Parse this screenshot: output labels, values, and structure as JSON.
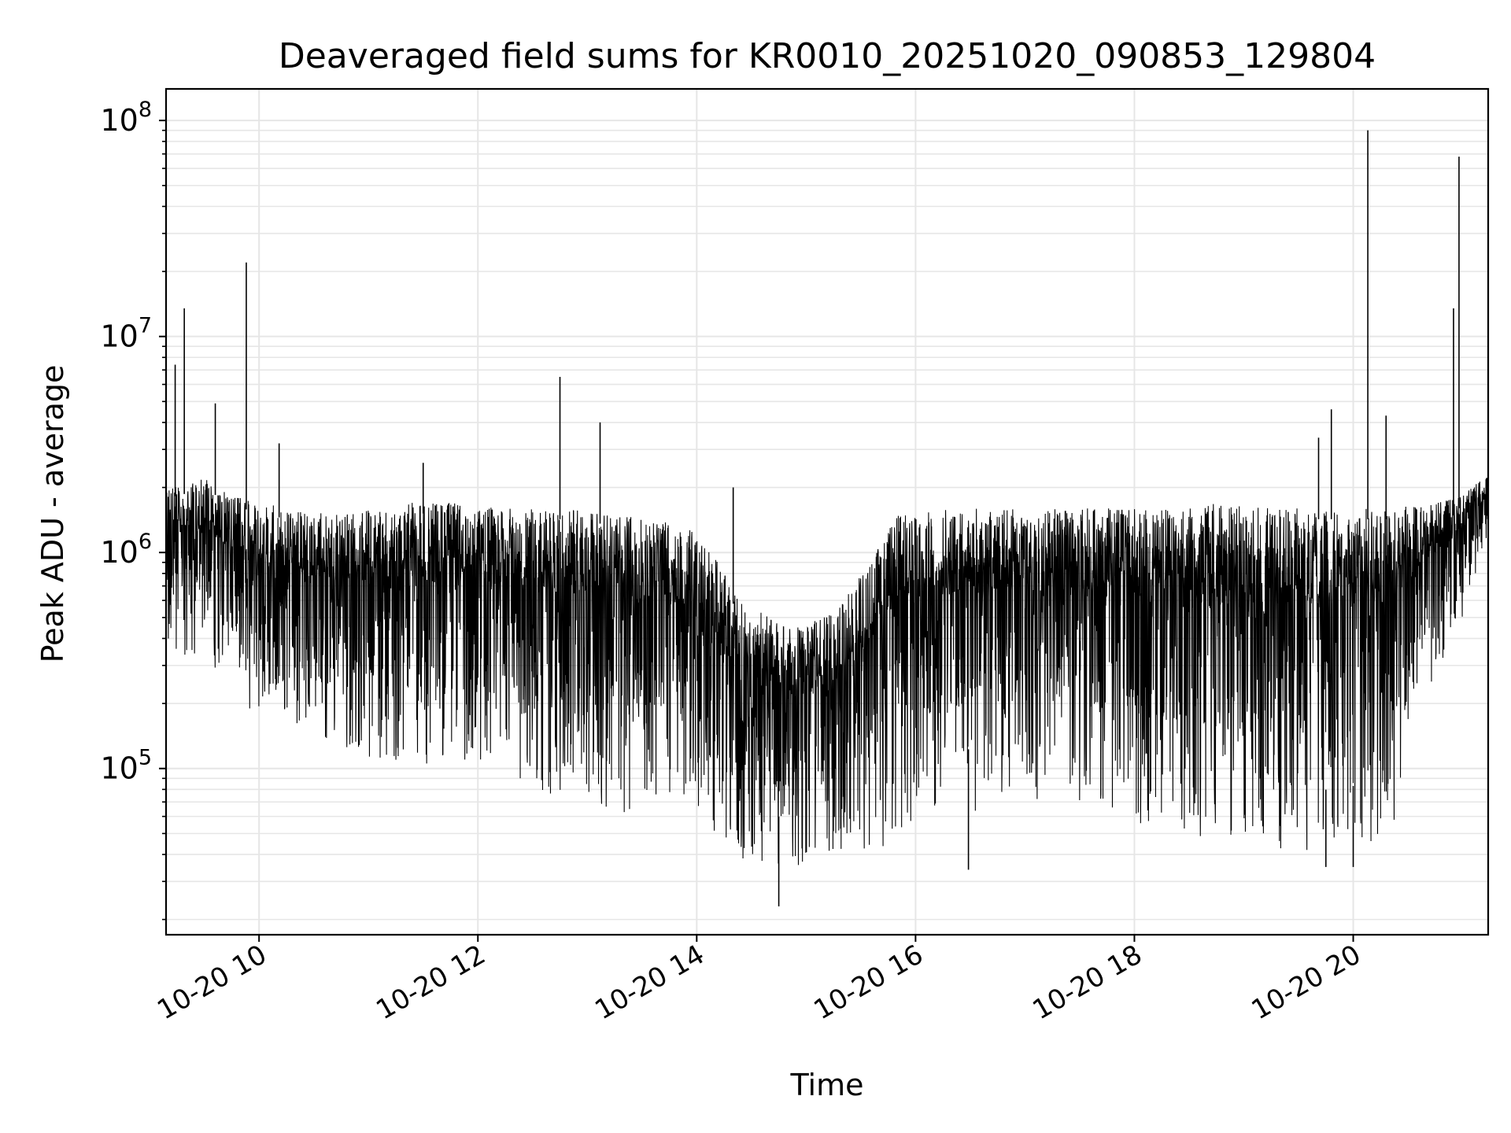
{
  "chart_data": {
    "type": "line",
    "title": "Deaveraged field sums for KR0010_20251020_090853_129804",
    "xlabel": "Time",
    "ylabel": "Peak ADU - average",
    "y_scale": "log",
    "ylim": [
      17000,
      140000000
    ],
    "xlim": [
      "2025-10-20 09:09",
      "2025-10-20 21:14"
    ],
    "x_ticks": [
      {
        "value": "2025-10-20 10:00",
        "label": "10-20 10"
      },
      {
        "value": "2025-10-20 12:00",
        "label": "10-20 12"
      },
      {
        "value": "2025-10-20 14:00",
        "label": "10-20 14"
      },
      {
        "value": "2025-10-20 16:00",
        "label": "10-20 16"
      },
      {
        "value": "2025-10-20 18:00",
        "label": "10-20 18"
      },
      {
        "value": "2025-10-20 20:00",
        "label": "10-20 20"
      }
    ],
    "y_ticks": [
      {
        "value": 100000,
        "base": "10",
        "exp": "5"
      },
      {
        "value": 1000000,
        "base": "10",
        "exp": "6"
      },
      {
        "value": 10000000,
        "base": "10",
        "exp": "7"
      },
      {
        "value": 100000000,
        "base": "10",
        "exp": "8"
      }
    ],
    "grid": true,
    "line_color": "#000000",
    "series": [
      {
        "envelope": [
          {
            "t": "2025-10-20 09:09",
            "low": 350000,
            "high": 2000000
          },
          {
            "t": "2025-10-20 09:30",
            "low": 300000,
            "high": 2200000
          },
          {
            "t": "2025-10-20 09:50",
            "low": 200000,
            "high": 1800000
          },
          {
            "t": "2025-10-20 10:15",
            "low": 150000,
            "high": 1600000
          },
          {
            "t": "2025-10-20 10:45",
            "low": 110000,
            "high": 1500000
          },
          {
            "t": "2025-10-20 11:15",
            "low": 100000,
            "high": 1700000
          },
          {
            "t": "2025-10-20 11:45",
            "low": 100000,
            "high": 1700000
          },
          {
            "t": "2025-10-20 12:15",
            "low": 90000,
            "high": 1600000
          },
          {
            "t": "2025-10-20 12:45",
            "low": 65000,
            "high": 1600000
          },
          {
            "t": "2025-10-20 13:15",
            "low": 60000,
            "high": 1500000
          },
          {
            "t": "2025-10-20 13:45",
            "low": 70000,
            "high": 1400000
          },
          {
            "t": "2025-10-20 14:05",
            "low": 55000,
            "high": 1200000
          },
          {
            "t": "2025-10-20 14:20",
            "low": 40000,
            "high": 650000
          },
          {
            "t": "2025-10-20 14:40",
            "low": 30000,
            "high": 500000
          },
          {
            "t": "2025-10-20 15:00",
            "low": 30000,
            "high": 450000
          },
          {
            "t": "2025-10-20 15:20",
            "low": 35000,
            "high": 600000
          },
          {
            "t": "2025-10-20 15:35",
            "low": 40000,
            "high": 900000
          },
          {
            "t": "2025-10-20 15:50",
            "low": 45000,
            "high": 1500000
          },
          {
            "t": "2025-10-20 16:20",
            "low": 60000,
            "high": 1600000
          },
          {
            "t": "2025-10-20 16:50",
            "low": 65000,
            "high": 1600000
          },
          {
            "t": "2025-10-20 17:20",
            "low": 70000,
            "high": 1600000
          },
          {
            "t": "2025-10-20 17:50",
            "low": 55000,
            "high": 1600000
          },
          {
            "t": "2025-10-20 18:20",
            "low": 50000,
            "high": 1600000
          },
          {
            "t": "2025-10-20 18:50",
            "low": 40000,
            "high": 1700000
          },
          {
            "t": "2025-10-20 19:20",
            "low": 40000,
            "high": 1600000
          },
          {
            "t": "2025-10-20 19:50",
            "low": 40000,
            "high": 1600000
          },
          {
            "t": "2025-10-20 20:20",
            "low": 45000,
            "high": 1600000
          },
          {
            "t": "2025-10-20 20:40",
            "low": 200000,
            "high": 1700000
          },
          {
            "t": "2025-10-20 20:58",
            "low": 450000,
            "high": 1800000
          },
          {
            "t": "2025-10-20 21:14",
            "low": 1100000,
            "high": 2300000
          }
        ],
        "spikes": [
          {
            "t": "2025-10-20 09:14",
            "y": 7400000
          },
          {
            "t": "2025-10-20 09:19",
            "y": 13500000
          },
          {
            "t": "2025-10-20 09:36",
            "y": 4900000
          },
          {
            "t": "2025-10-20 09:53",
            "y": 22000000
          },
          {
            "t": "2025-10-20 10:11",
            "y": 3200000
          },
          {
            "t": "2025-10-20 11:30",
            "y": 2600000
          },
          {
            "t": "2025-10-20 12:45",
            "y": 6500000
          },
          {
            "t": "2025-10-20 13:07",
            "y": 4000000
          },
          {
            "t": "2025-10-20 14:20",
            "y": 2000000
          },
          {
            "t": "2025-10-20 19:41",
            "y": 3400000
          },
          {
            "t": "2025-10-20 19:48",
            "y": 4600000
          },
          {
            "t": "2025-10-20 20:08",
            "y": 90000000
          },
          {
            "t": "2025-10-20 20:18",
            "y": 4300000
          },
          {
            "t": "2025-10-20 20:55",
            "y": 13500000
          },
          {
            "t": "2025-10-20 20:58",
            "y": 68000000
          }
        ],
        "dips": [
          {
            "t": "2025-10-20 14:45",
            "y": 23000
          },
          {
            "t": "2025-10-20 16:29",
            "y": 34000
          },
          {
            "t": "2025-10-20 19:45",
            "y": 35000
          },
          {
            "t": "2025-10-20 20:00",
            "y": 35000
          }
        ]
      }
    ]
  }
}
